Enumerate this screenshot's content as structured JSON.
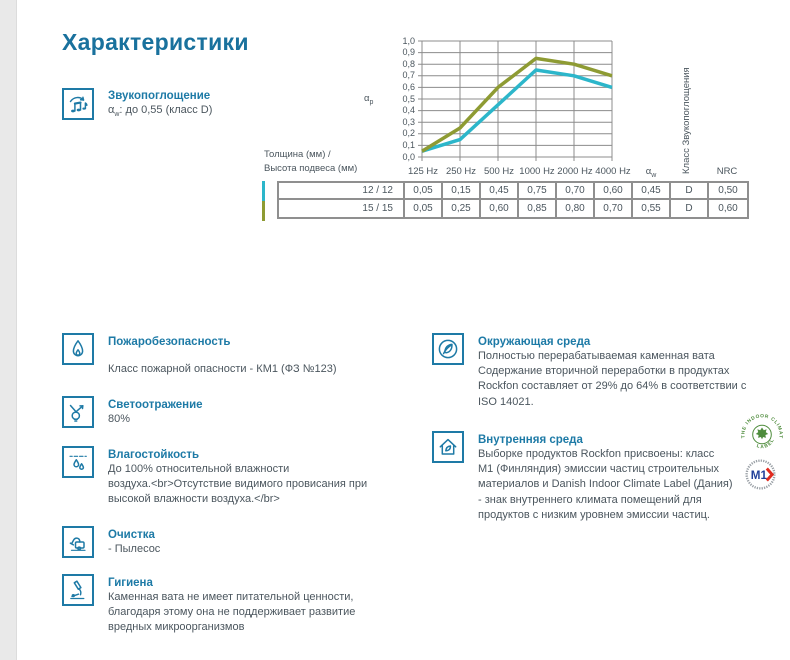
{
  "page": {
    "title": "Характеристики"
  },
  "colors": {
    "accent_blue": "#1d7aa6",
    "heading_blue": "#19719d",
    "series_12_12": "#2cb6ca",
    "series_15_15": "#8e9b33",
    "grid_gray": "#8c8c8c",
    "cert_green": "#4e8c3c",
    "m1_blue": "#21409a",
    "m1_red": "#e02b20"
  },
  "sound_absorption": {
    "title": "Звукопоглощение",
    "alpha": "α",
    "alpha_sub": "w",
    "value_rest": ": до 0,55 (класс D)"
  },
  "chart_data": {
    "type": "line",
    "title": "",
    "x_categories": [
      "125 Hz",
      "250 Hz",
      "500 Hz",
      "1000 Hz",
      "2000 Hz",
      "4000 Hz"
    ],
    "ylabel_base": "α",
    "ylabel_sub": "p",
    "right_axis_label": "Класс Звукопоглощения",
    "ylim": [
      0.0,
      1.0
    ],
    "ytick_step": 0.1,
    "grid": true,
    "series": [
      {
        "name": "12 / 12",
        "color": "#2cb6ca",
        "values": [
          0.05,
          0.15,
          0.45,
          0.75,
          0.7,
          0.6
        ]
      },
      {
        "name": "15 / 15",
        "color": "#8e9b33",
        "values": [
          0.05,
          0.25,
          0.6,
          0.85,
          0.8,
          0.7
        ]
      }
    ]
  },
  "table": {
    "corner_label_line1": "Толщина (мм) /",
    "corner_label_line2": "Высота подвеса (мм)",
    "freq_headers": [
      "125 Hz",
      "250 Hz",
      "500 Hz",
      "1000 Hz",
      "2000 Hz",
      "4000 Hz"
    ],
    "alpha_header_base": "α",
    "alpha_header_sub": "w",
    "class_header": "Класс Звукопоглощения",
    "nrc_header": "NRC",
    "rows": [
      {
        "label": "12 / 12",
        "marker_color": "#2cb6ca",
        "values": [
          "0,05",
          "0,15",
          "0,45",
          "0,75",
          "0,70",
          "0,60",
          "0,45",
          "D",
          "0,50"
        ]
      },
      {
        "label": "15 / 15",
        "marker_color": "#8e9b33",
        "values": [
          "0,05",
          "0,25",
          "0,60",
          "0,85",
          "0,80",
          "0,70",
          "0,55",
          "D",
          "0,60"
        ]
      }
    ]
  },
  "sections_left": [
    {
      "icon": "flame-icon",
      "title": "Пожаробезопасность",
      "body": "Класс пожарной опасности - КМ1 (ФЗ №123)"
    },
    {
      "icon": "lightbulb-icon",
      "title": "Светоотражение",
      "body": "80%"
    },
    {
      "icon": "droplets-icon",
      "title": "Влагостойкость",
      "body": "До 100% относительной влажности\nвоздуха.<br>Отсутствие видимого провисания при\nвысокой влажности воздуха.</br>"
    },
    {
      "icon": "vacuum-icon",
      "title": "Очистка",
      "body": "-  Пылесос"
    },
    {
      "icon": "microscope-icon",
      "title": "Гигиена",
      "body": "Каменная вата не имеет питательной ценности,\nблагодаря этому она не поддерживает развитие\nвредных микроорганизмов"
    }
  ],
  "sections_right": [
    {
      "icon": "leaf-circle-icon",
      "title": "Окружающая среда",
      "body": "Полностью перерабатываемая каменная вата\nСодержание вторичной переработки в продуктах\nRockfon составляет от 29% до 64% в соответствии с\nISO 14021."
    },
    {
      "icon": "house-leaf-icon",
      "title": "Внутренняя среда",
      "body": "Выборке продуктов Rockfon присвоены: класс\nM1 (Финляндия) эмиссии частиц строительных\nматериалов и Danish Indoor Climate Label (Дания)\n- знак внутреннего климата помещений для\nпродуктов с низким уровнем эмиссии частиц."
    }
  ],
  "certifications": {
    "indoor_climate": {
      "arc_top": "THE INDOOR CLIMATE",
      "arc_bottom": "LABEL"
    },
    "m1": {
      "label": "M1"
    }
  }
}
